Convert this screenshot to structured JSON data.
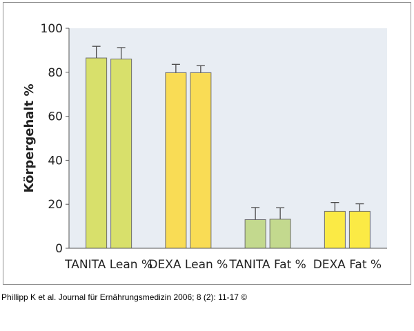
{
  "chart_data": {
    "type": "bar",
    "title": "",
    "xlabel": "",
    "ylabel": "Körpergehalt %",
    "ylim": [
      0,
      100
    ],
    "yticks": [
      0,
      20,
      40,
      60,
      80,
      100
    ],
    "grid": false,
    "categories": [
      "TANITA Lean %",
      "DEXA Lean %",
      "TANITA Fat %",
      "DEXA Fat %"
    ],
    "bars_per_category": 2,
    "values": [
      [
        86.5,
        86.0
      ],
      [
        79.8,
        79.8
      ],
      [
        13.0,
        13.2
      ],
      [
        16.8,
        16.8
      ]
    ],
    "error_upper": [
      [
        5.3,
        5.2
      ],
      [
        3.8,
        3.2
      ],
      [
        5.5,
        5.2
      ],
      [
        4.0,
        3.4
      ]
    ],
    "colors": [
      "#d8e06b",
      "#f9dc55",
      "#c3d98e",
      "#fbea45"
    ],
    "plot_background": "#e8edf3",
    "error_color": "#4a4a4a"
  },
  "caption": "Phillipp K et al. Journal für Ernährungsmedizin 2006; 8 (2): 11-17 ©"
}
